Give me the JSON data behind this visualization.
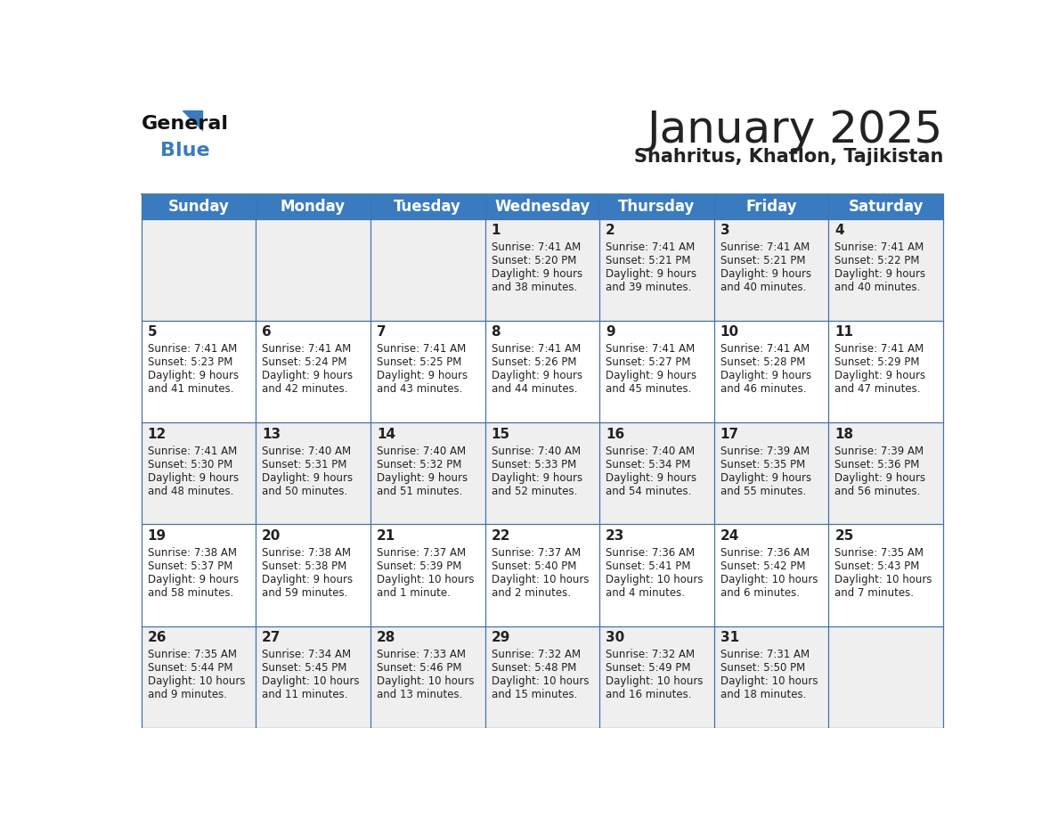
{
  "title": "January 2025",
  "subtitle": "Shahritus, Khatlon, Tajikistan",
  "header_bg": "#3a7bbf",
  "header_text": "#ffffff",
  "cell_bg_row0": "#efefef",
  "cell_bg_row1": "#ffffff",
  "days_of_week": [
    "Sunday",
    "Monday",
    "Tuesday",
    "Wednesday",
    "Thursday",
    "Friday",
    "Saturday"
  ],
  "calendar_data": [
    [
      {
        "day": "",
        "sunrise": "",
        "sunset": "",
        "daylight": ""
      },
      {
        "day": "",
        "sunrise": "",
        "sunset": "",
        "daylight": ""
      },
      {
        "day": "",
        "sunrise": "",
        "sunset": "",
        "daylight": ""
      },
      {
        "day": "1",
        "sunrise": "7:41 AM",
        "sunset": "5:20 PM",
        "daylight": "9 hours\nand 38 minutes."
      },
      {
        "day": "2",
        "sunrise": "7:41 AM",
        "sunset": "5:21 PM",
        "daylight": "9 hours\nand 39 minutes."
      },
      {
        "day": "3",
        "sunrise": "7:41 AM",
        "sunset": "5:21 PM",
        "daylight": "9 hours\nand 40 minutes."
      },
      {
        "day": "4",
        "sunrise": "7:41 AM",
        "sunset": "5:22 PM",
        "daylight": "9 hours\nand 40 minutes."
      }
    ],
    [
      {
        "day": "5",
        "sunrise": "7:41 AM",
        "sunset": "5:23 PM",
        "daylight": "9 hours\nand 41 minutes."
      },
      {
        "day": "6",
        "sunrise": "7:41 AM",
        "sunset": "5:24 PM",
        "daylight": "9 hours\nand 42 minutes."
      },
      {
        "day": "7",
        "sunrise": "7:41 AM",
        "sunset": "5:25 PM",
        "daylight": "9 hours\nand 43 minutes."
      },
      {
        "day": "8",
        "sunrise": "7:41 AM",
        "sunset": "5:26 PM",
        "daylight": "9 hours\nand 44 minutes."
      },
      {
        "day": "9",
        "sunrise": "7:41 AM",
        "sunset": "5:27 PM",
        "daylight": "9 hours\nand 45 minutes."
      },
      {
        "day": "10",
        "sunrise": "7:41 AM",
        "sunset": "5:28 PM",
        "daylight": "9 hours\nand 46 minutes."
      },
      {
        "day": "11",
        "sunrise": "7:41 AM",
        "sunset": "5:29 PM",
        "daylight": "9 hours\nand 47 minutes."
      }
    ],
    [
      {
        "day": "12",
        "sunrise": "7:41 AM",
        "sunset": "5:30 PM",
        "daylight": "9 hours\nand 48 minutes."
      },
      {
        "day": "13",
        "sunrise": "7:40 AM",
        "sunset": "5:31 PM",
        "daylight": "9 hours\nand 50 minutes."
      },
      {
        "day": "14",
        "sunrise": "7:40 AM",
        "sunset": "5:32 PM",
        "daylight": "9 hours\nand 51 minutes."
      },
      {
        "day": "15",
        "sunrise": "7:40 AM",
        "sunset": "5:33 PM",
        "daylight": "9 hours\nand 52 minutes."
      },
      {
        "day": "16",
        "sunrise": "7:40 AM",
        "sunset": "5:34 PM",
        "daylight": "9 hours\nand 54 minutes."
      },
      {
        "day": "17",
        "sunrise": "7:39 AM",
        "sunset": "5:35 PM",
        "daylight": "9 hours\nand 55 minutes."
      },
      {
        "day": "18",
        "sunrise": "7:39 AM",
        "sunset": "5:36 PM",
        "daylight": "9 hours\nand 56 minutes."
      }
    ],
    [
      {
        "day": "19",
        "sunrise": "7:38 AM",
        "sunset": "5:37 PM",
        "daylight": "9 hours\nand 58 minutes."
      },
      {
        "day": "20",
        "sunrise": "7:38 AM",
        "sunset": "5:38 PM",
        "daylight": "9 hours\nand 59 minutes."
      },
      {
        "day": "21",
        "sunrise": "7:37 AM",
        "sunset": "5:39 PM",
        "daylight": "10 hours\nand 1 minute."
      },
      {
        "day": "22",
        "sunrise": "7:37 AM",
        "sunset": "5:40 PM",
        "daylight": "10 hours\nand 2 minutes."
      },
      {
        "day": "23",
        "sunrise": "7:36 AM",
        "sunset": "5:41 PM",
        "daylight": "10 hours\nand 4 minutes."
      },
      {
        "day": "24",
        "sunrise": "7:36 AM",
        "sunset": "5:42 PM",
        "daylight": "10 hours\nand 6 minutes."
      },
      {
        "day": "25",
        "sunrise": "7:35 AM",
        "sunset": "5:43 PM",
        "daylight": "10 hours\nand 7 minutes."
      }
    ],
    [
      {
        "day": "26",
        "sunrise": "7:35 AM",
        "sunset": "5:44 PM",
        "daylight": "10 hours\nand 9 minutes."
      },
      {
        "day": "27",
        "sunrise": "7:34 AM",
        "sunset": "5:45 PM",
        "daylight": "10 hours\nand 11 minutes."
      },
      {
        "day": "28",
        "sunrise": "7:33 AM",
        "sunset": "5:46 PM",
        "daylight": "10 hours\nand 13 minutes."
      },
      {
        "day": "29",
        "sunrise": "7:32 AM",
        "sunset": "5:48 PM",
        "daylight": "10 hours\nand 15 minutes."
      },
      {
        "day": "30",
        "sunrise": "7:32 AM",
        "sunset": "5:49 PM",
        "daylight": "10 hours\nand 16 minutes."
      },
      {
        "day": "31",
        "sunrise": "7:31 AM",
        "sunset": "5:50 PM",
        "daylight": "10 hours\nand 18 minutes."
      },
      {
        "day": "",
        "sunrise": "",
        "sunset": "",
        "daylight": ""
      }
    ]
  ],
  "logo_text_general": "General",
  "logo_text_blue": "Blue",
  "text_color_dark": "#222222",
  "text_color_blue": "#3a7bbf",
  "divider_color": "#4472a8",
  "header_fontsize": 12,
  "day_num_fontsize": 11,
  "cell_text_fontsize": 8.5,
  "title_fontsize": 36,
  "subtitle_fontsize": 15
}
